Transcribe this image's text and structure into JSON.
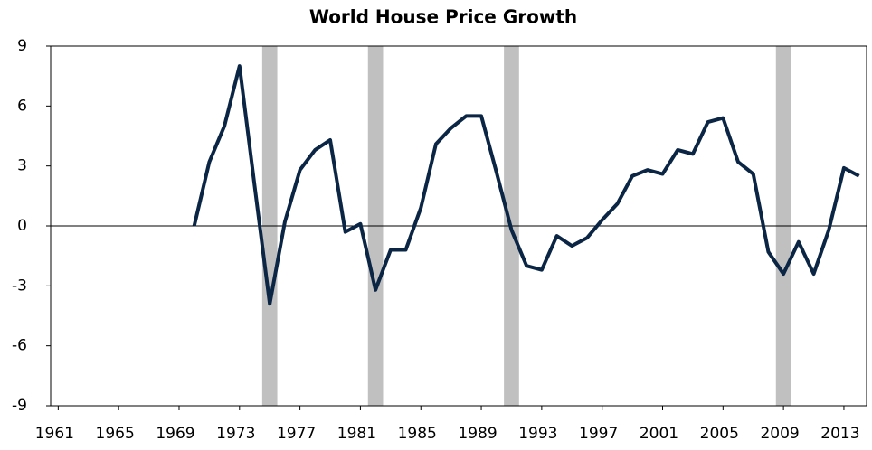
{
  "chart_data": {
    "type": "line",
    "title": "World House Price Growth",
    "x": [
      1970,
      1971,
      1972,
      1973,
      1974,
      1975,
      1976,
      1977,
      1978,
      1979,
      1980,
      1981,
      1982,
      1983,
      1984,
      1985,
      1986,
      1987,
      1988,
      1989,
      1990,
      1991,
      1992,
      1993,
      1994,
      1995,
      1996,
      1997,
      1998,
      1999,
      2000,
      2001,
      2002,
      2003,
      2004,
      2005,
      2006,
      2007,
      2008,
      2009,
      2010,
      2011,
      2012,
      2013,
      2014
    ],
    "series": [
      {
        "name": "World House Price Growth",
        "color": "#0b2545",
        "values": [
          0,
          3.2,
          5.0,
          8.0,
          2.0,
          -3.9,
          0.2,
          2.8,
          3.8,
          4.3,
          -0.3,
          0.1,
          -3.2,
          -1.2,
          -1.2,
          0.9,
          4.1,
          4.9,
          5.5,
          5.5,
          2.7,
          -0.2,
          -2.0,
          -2.2,
          -0.5,
          -1.0,
          -0.6,
          0.3,
          1.1,
          2.5,
          2.8,
          2.6,
          3.8,
          3.6,
          5.2,
          5.4,
          3.2,
          2.6,
          -1.3,
          -2.4,
          -0.8,
          -2.4,
          -0.2,
          2.9,
          2.5
        ]
      }
    ],
    "recession_years": [
      1975,
      1982,
      1991,
      2009
    ],
    "recession_color": "#c0c0c0",
    "xlim": [
      1960.5,
      2014.5
    ],
    "xticks": [
      1961,
      1965,
      1969,
      1973,
      1977,
      1981,
      1985,
      1989,
      1993,
      1997,
      2001,
      2005,
      2009,
      2013
    ],
    "ylim": [
      -9,
      9
    ],
    "yticks": [
      9,
      6,
      3,
      0,
      -3,
      -6,
      -9
    ],
    "zero_line": true,
    "grid": false
  }
}
